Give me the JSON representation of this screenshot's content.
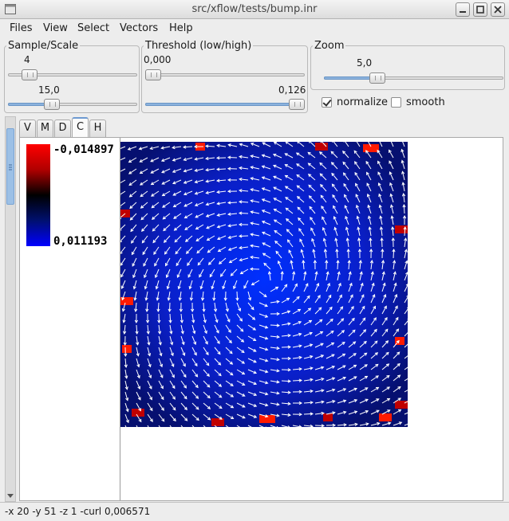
{
  "window": {
    "title": "src/xflow/tests/bump.inr"
  },
  "menu": [
    {
      "label": "Files"
    },
    {
      "label": "View"
    },
    {
      "label": "Select"
    },
    {
      "label": "Vectors"
    },
    {
      "label": "Help"
    }
  ],
  "sample_scale": {
    "legend": "Sample/Scale",
    "sample_value": "4",
    "scale_value": "15,0",
    "sample_fraction": 0.12,
    "scale_fraction": 0.32
  },
  "threshold": {
    "legend": "Threshold (low/high)",
    "low_value": "0,000",
    "high_value": "0,126",
    "low_fraction": 0.0,
    "high_fraction": 1.0
  },
  "zoom": {
    "legend": "Zoom",
    "value": "5,0",
    "fraction": 0.28
  },
  "options": {
    "normalize_label": "normalize",
    "normalize_checked": true,
    "smooth_label": "smooth",
    "smooth_checked": false
  },
  "tabs": [
    {
      "label": "V",
      "active": false
    },
    {
      "label": "M",
      "active": false
    },
    {
      "label": "D",
      "active": false
    },
    {
      "label": "C",
      "active": true
    },
    {
      "label": "H",
      "active": false
    }
  ],
  "colorbar": {
    "max_label": "-0,014897",
    "min_label": "0,011193",
    "colors": [
      "#ff0000",
      "#000000",
      "#0000ff"
    ]
  },
  "status": {
    "text": "-x 20 -y 51 -z 1 -curl 0,006571"
  },
  "colors": {
    "accent": "#8bb2dd",
    "field_background": "#0a28c8",
    "arrow": "#ffffff"
  },
  "icons": [
    "app-menu-icon",
    "minimize-icon",
    "maximize-icon",
    "close-icon",
    "scroll-grip-icon"
  ]
}
